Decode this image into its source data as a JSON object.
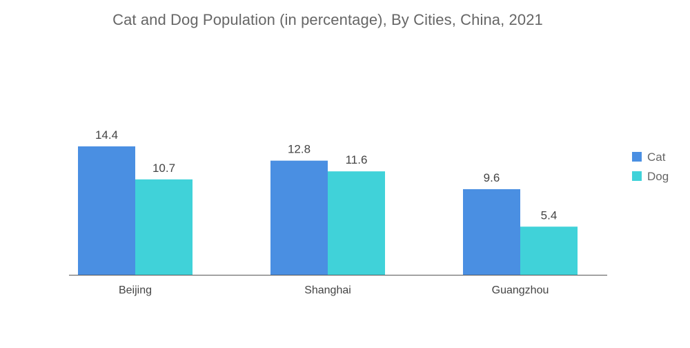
{
  "chart_data": {
    "type": "bar",
    "title": "Cat and Dog Population (in percentage), By Cities, China, 2021",
    "categories": [
      "Beijing",
      "Shanghai",
      "Guangzhou"
    ],
    "series": [
      {
        "name": "Cat",
        "values": [
          14.4,
          12.8,
          9.6
        ],
        "color": "#4a8fe2"
      },
      {
        "name": "Dog",
        "values": [
          10.7,
          11.6,
          5.4
        ],
        "color": "#40d2d9"
      }
    ],
    "xlabel": "",
    "ylabel": "",
    "ylim": [
      0,
      14.4
    ],
    "grid": false,
    "legend": "right",
    "axis_color": "#555555"
  }
}
